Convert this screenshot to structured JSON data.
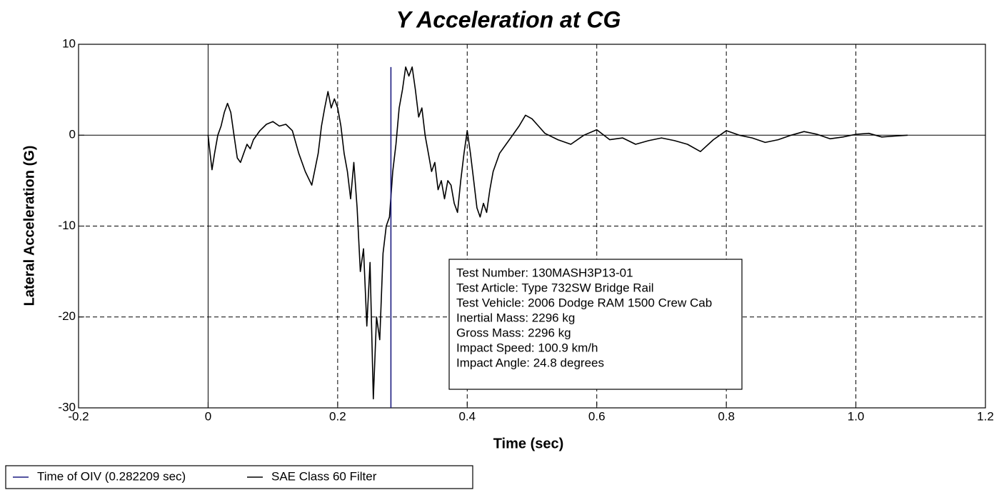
{
  "chart_data": {
    "type": "line",
    "title": "Y Acceleration at CG",
    "xlabel": "Time (sec)",
    "ylabel": "Lateral Acceleration (G)",
    "xlim": [
      -0.2,
      1.2
    ],
    "ylim": [
      -30,
      10
    ],
    "xticks": [
      -0.2,
      0,
      0.2,
      0.4,
      0.6,
      0.8,
      {
        "value": 1.0,
        "label": "1.0"
      },
      1.2
    ],
    "yticks": [
      -30,
      -20,
      -10,
      0,
      10
    ],
    "grid": true,
    "legend": "bottom-left",
    "x": [
      0.0,
      0.003,
      0.006,
      0.01,
      0.015,
      0.02,
      0.025,
      0.03,
      0.035,
      0.04,
      0.045,
      0.05,
      0.055,
      0.06,
      0.065,
      0.07,
      0.08,
      0.09,
      0.1,
      0.11,
      0.12,
      0.13,
      0.14,
      0.15,
      0.16,
      0.17,
      0.175,
      0.18,
      0.185,
      0.19,
      0.195,
      0.2,
      0.205,
      0.21,
      0.215,
      0.22,
      0.225,
      0.23,
      0.235,
      0.24,
      0.245,
      0.25,
      0.255,
      0.26,
      0.265,
      0.27,
      0.275,
      0.28,
      0.285,
      0.29,
      0.295,
      0.3,
      0.305,
      0.31,
      0.315,
      0.32,
      0.325,
      0.33,
      0.335,
      0.34,
      0.345,
      0.35,
      0.355,
      0.36,
      0.365,
      0.37,
      0.375,
      0.38,
      0.385,
      0.39,
      0.395,
      0.4,
      0.405,
      0.41,
      0.415,
      0.42,
      0.425,
      0.43,
      0.435,
      0.44,
      0.45,
      0.46,
      0.47,
      0.48,
      0.49,
      0.5,
      0.51,
      0.52,
      0.54,
      0.56,
      0.58,
      0.6,
      0.62,
      0.64,
      0.66,
      0.68,
      0.7,
      0.72,
      0.74,
      0.76,
      0.78,
      0.8,
      0.82,
      0.84,
      0.86,
      0.88,
      0.9,
      0.92,
      0.94,
      0.96,
      0.98,
      1.0,
      1.02,
      1.04,
      1.06,
      1.08
    ],
    "series": [
      {
        "name": "SAE Class 60 Filter",
        "color": "#000000",
        "values": [
          0,
          -2,
          -3.8,
          -2,
          0,
          1,
          2.5,
          3.5,
          2.5,
          0,
          -2.5,
          -3,
          -2,
          -1,
          -1.5,
          -0.5,
          0.5,
          1.2,
          1.5,
          1,
          1.2,
          0.5,
          -2,
          -4,
          -5.5,
          -2,
          1,
          3,
          4.8,
          3,
          4,
          3,
          1,
          -2,
          -4,
          -7,
          -3,
          -8,
          -15,
          -12.5,
          -21,
          -14,
          -29,
          -20,
          -22.5,
          -13,
          -10,
          -9,
          -4,
          -1,
          3,
          5,
          7.5,
          6.5,
          7.5,
          5,
          2,
          3,
          0,
          -2,
          -4,
          -3,
          -6,
          -5,
          -7,
          -5,
          -5.5,
          -7.5,
          -8.5,
          -5,
          -2,
          0.5,
          -2,
          -5,
          -8,
          -9,
          -7.5,
          -8.5,
          -6,
          -4,
          -2,
          -1,
          0,
          1,
          2.2,
          1.8,
          1,
          0.2,
          -0.5,
          -1,
          0,
          0.6,
          -0.5,
          -0.3,
          -1,
          -0.6,
          -0.3,
          -0.6,
          -1,
          -1.8,
          -0.5,
          0.5,
          0,
          -0.3,
          -0.8,
          -0.5,
          0,
          0.4,
          0.1,
          -0.4,
          -0.2,
          0.1,
          0.2,
          -0.2,
          -0.1,
          0
        ]
      }
    ],
    "markers": [
      {
        "name": "Time of OIV (0.282209 sec)",
        "color": "#1c1c80",
        "x": 0.282209,
        "y_range": [
          -30,
          7.5
        ]
      }
    ],
    "annotations": [
      "Test Number: 130MASH3P13-01",
      "Test Article: Type 732SW Bridge Rail",
      "Test Vehicle: 2006 Dodge RAM 1500 Crew Cab",
      "Inertial Mass: 2296 kg",
      "Gross Mass: 2296 kg",
      "Impact Speed: 100.9 km/h",
      "Impact Angle: 24.8 degrees"
    ]
  }
}
